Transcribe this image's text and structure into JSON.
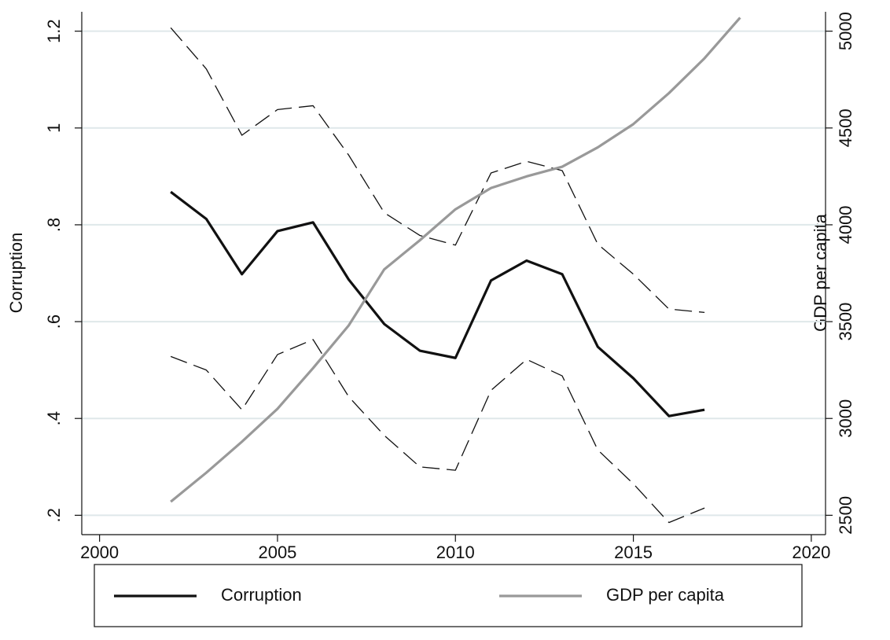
{
  "chart_data": {
    "type": "line",
    "x": [
      2002,
      2003,
      2004,
      2005,
      2006,
      2007,
      2008,
      2009,
      2010,
      2011,
      2012,
      2013,
      2014,
      2015,
      2016,
      2017,
      2018
    ],
    "series": [
      {
        "name": "Corruption",
        "color": "#111111",
        "values": [
          0.868,
          0.812,
          0.698,
          0.787,
          0.805,
          0.687,
          0.595,
          0.54,
          0.525,
          0.685,
          0.726,
          0.698,
          0.548,
          0.483,
          0.405,
          0.418,
          null
        ],
        "upper": [
          1.207,
          1.122,
          0.985,
          1.038,
          1.046,
          0.944,
          0.825,
          0.778,
          0.758,
          0.907,
          0.931,
          0.912,
          0.76,
          0.698,
          0.626,
          0.619,
          null
        ],
        "lower": [
          0.528,
          0.5,
          0.418,
          0.532,
          0.563,
          0.445,
          0.365,
          0.3,
          0.293,
          0.458,
          0.522,
          0.488,
          0.335,
          0.265,
          0.185,
          0.215,
          null
        ]
      },
      {
        "name": "GDP per capita",
        "color": "#999999",
        "axis": "y2",
        "values": [
          2570,
          2720,
          2880,
          3050,
          3260,
          3480,
          3770,
          3920,
          4080,
          4190,
          4250,
          4300,
          4400,
          4520,
          4680,
          4860,
          5070
        ]
      }
    ],
    "ylabel": "Corruption",
    "y2label": "GDP per capita",
    "xlim": [
      1999.5,
      2020.4
    ],
    "xticks": [
      2000,
      2005,
      2010,
      2015,
      2020
    ],
    "ylim": [
      0.16,
      1.24
    ],
    "yticks": [
      {
        "value": 0.2,
        "label": ".2"
      },
      {
        "value": 0.4,
        "label": ".4"
      },
      {
        "value": 0.6,
        "label": ".6"
      },
      {
        "value": 0.8,
        "label": ".8"
      },
      1,
      1.2
    ],
    "y2lim": [
      2400,
      5100
    ],
    "y2ticks": [
      2500,
      3000,
      3500,
      4000,
      4500,
      5000
    ],
    "grid": true,
    "legend": "bottom"
  }
}
